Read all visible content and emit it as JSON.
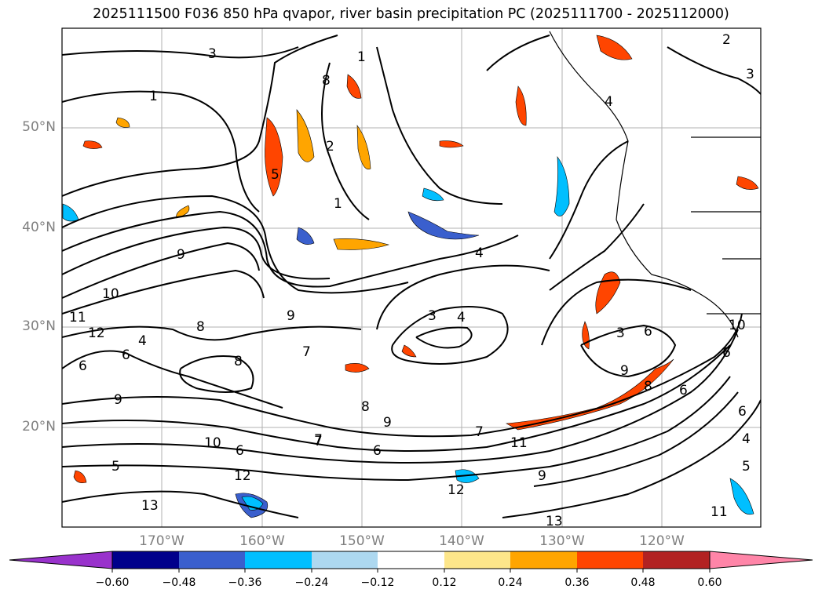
{
  "title": "2025111500 F036 850 hPa qvapor, river basin precipitation PC (2025111700 - 2025112000)",
  "map": {
    "lat_labels": [
      "50°N",
      "40°N",
      "30°N",
      "20°N"
    ],
    "lon_labels": [
      "170°W",
      "160°W",
      "150°W",
      "140°W",
      "130°W",
      "120°W"
    ],
    "contour_labels": [
      "3",
      "1",
      "8",
      "2",
      "1",
      "2",
      "3",
      "4",
      "4",
      "5",
      "1",
      "9",
      "10",
      "11",
      "12",
      "8",
      "6",
      "4",
      "3",
      "9",
      "8",
      "6",
      "9",
      "7",
      "8",
      "9",
      "10",
      "6",
      "5",
      "7",
      "6",
      "12",
      "13",
      "7",
      "11",
      "9",
      "13",
      "12",
      "5",
      "4",
      "6",
      "6",
      "8",
      "9",
      "3",
      "11",
      "10",
      "6",
      "7",
      "6",
      "4"
    ]
  },
  "colorbar": {
    "ticks": [
      "−0.60",
      "−0.48",
      "−0.36",
      "−0.24",
      "−0.12",
      "0.12",
      "0.24",
      "0.36",
      "0.48",
      "0.60"
    ],
    "colors": [
      "#9932cc",
      "#00008b",
      "#3a5fcd",
      "#00bfff",
      "#add8f0",
      "#ffffff",
      "#fde68a",
      "#ffa500",
      "#ff4500",
      "#b22222",
      "#ff85a8"
    ]
  }
}
